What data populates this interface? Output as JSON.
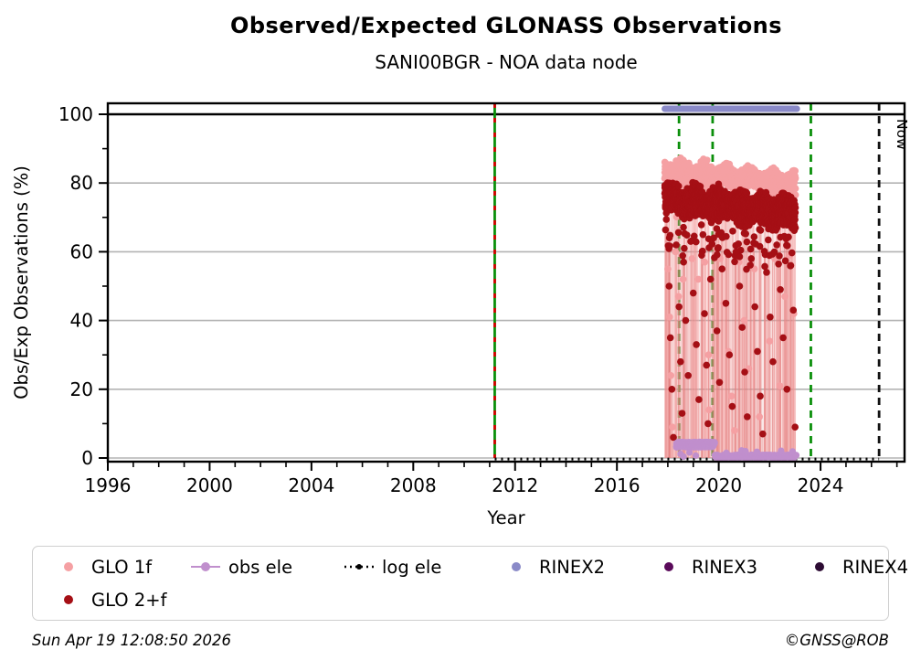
{
  "header": {
    "title": "Observed/Expected GLONASS Observations",
    "subtitle": "SANI00BGR - NOA data node"
  },
  "footer": {
    "timestamp": "Sun Apr 19 12:08:50 2026",
    "copyright": "©GNSS@ROB"
  },
  "legend": {
    "items": [
      {
        "label": "GLO 1f",
        "marker": "dot",
        "color": "#f5a0a3"
      },
      {
        "label": "obs ele",
        "marker": "line-dot",
        "color": "#c08fcd"
      },
      {
        "label": "log ele",
        "marker": "dotted-line",
        "color": "#000000"
      },
      {
        "label": "RINEX2",
        "marker": "dot",
        "color": "#8a8ac8"
      },
      {
        "label": "RINEX3",
        "marker": "dot",
        "color": "#5a0a5a"
      },
      {
        "label": "RINEX4",
        "marker": "dot",
        "color": "#2c0b33"
      },
      {
        "label": "GLO 2+f",
        "marker": "dot",
        "color": "#a50f15"
      }
    ]
  },
  "chart_data": {
    "type": "scatter",
    "title": "Observed/Expected GLONASS Observations",
    "subtitle": "SANI00BGR - NOA data node",
    "xlabel": "Year",
    "ylabel": "Obs/Exp Observations (%)",
    "xlim": [
      1996,
      2027.3
    ],
    "ylim": [
      -1.1,
      103.3
    ],
    "xticks": [
      1996,
      2000,
      2004,
      2008,
      2012,
      2016,
      2020,
      2024
    ],
    "xminor_from": 1997,
    "xminor_to": 2027,
    "yticks": [
      0,
      20,
      40,
      60,
      80,
      100
    ],
    "yminor": [
      10,
      30,
      50,
      70,
      90
    ],
    "grid_color": "#b3b3b3",
    "hundred_line": {
      "y": 100,
      "color": "#000000"
    },
    "now_label": "Now",
    "vlines": [
      {
        "x": 2011.2,
        "color": "#0a8f0a",
        "dash": false,
        "overlay_color": "#d40000",
        "label": ""
      },
      {
        "x": 2018.44,
        "color": "#0a8f0a",
        "dash": true,
        "label": ""
      },
      {
        "x": 2019.76,
        "color": "#0a8f0a",
        "dash": true,
        "label": ""
      },
      {
        "x": 2023.62,
        "color": "#0a8f0a",
        "dash": true,
        "label": ""
      },
      {
        "x": 2026.3,
        "color": "#111111",
        "dash": true,
        "label": "Now"
      }
    ],
    "series": [
      {
        "name": "GLO 1f",
        "color": "#f5a0a3",
        "stem_color": "rgba(246,163,165,0.45)",
        "band": {
          "x0": 2017.88,
          "x1": 2023.02,
          "step": 0.016,
          "top": [
            86.5,
            82.5
          ],
          "bottom": [
            80.0,
            77.0
          ],
          "r": 3.8,
          "seed": 1.7,
          "tail_prob": 0.09,
          "tail_drop": 8
        },
        "outliers": [
          [
            2018.0,
            55
          ],
          [
            2018.07,
            41
          ],
          [
            2018.12,
            24
          ],
          [
            2018.18,
            9
          ],
          [
            2018.3,
            60
          ],
          [
            2018.42,
            47
          ],
          [
            2018.6,
            52
          ],
          [
            2018.95,
            58
          ],
          [
            2019.2,
            52
          ],
          [
            2019.45,
            57
          ],
          [
            2019.6,
            30
          ],
          [
            2019.62,
            14
          ],
          [
            2019.9,
            61
          ],
          [
            2020.05,
            58
          ],
          [
            2020.2,
            45
          ],
          [
            2020.38,
            31
          ],
          [
            2020.5,
            18
          ],
          [
            2020.62,
            8
          ],
          [
            2020.8,
            57
          ],
          [
            2021.0,
            40
          ],
          [
            2021.18,
            26
          ],
          [
            2021.4,
            55
          ],
          [
            2021.6,
            12
          ],
          [
            2021.8,
            60
          ],
          [
            2022.0,
            34
          ],
          [
            2022.2,
            58
          ],
          [
            2022.4,
            21
          ],
          [
            2022.6,
            47
          ],
          [
            2022.8,
            59
          ],
          [
            2022.95,
            42
          ]
        ]
      },
      {
        "name": "GLO 2+f",
        "color": "#a50f15",
        "stem_color": "rgba(228,125,125,0.40)",
        "band": {
          "x0": 2017.88,
          "x1": 2023.02,
          "step": 0.015,
          "top": [
            79.5,
            75.5
          ],
          "bottom": [
            71.5,
            66.5
          ],
          "r": 3.8,
          "seed": 4.3,
          "tail_prob": 0.22,
          "tail_drop": 11
        },
        "outliers": [
          [
            2018.05,
            50
          ],
          [
            2018.1,
            35
          ],
          [
            2018.16,
            20
          ],
          [
            2018.22,
            6
          ],
          [
            2018.33,
            62
          ],
          [
            2018.44,
            44
          ],
          [
            2018.5,
            28
          ],
          [
            2018.56,
            13
          ],
          [
            2018.62,
            57
          ],
          [
            2018.7,
            40
          ],
          [
            2018.8,
            24
          ],
          [
            2018.9,
            63
          ],
          [
            2019.0,
            48
          ],
          [
            2019.12,
            33
          ],
          [
            2019.22,
            17
          ],
          [
            2019.33,
            59
          ],
          [
            2019.44,
            42
          ],
          [
            2019.52,
            27
          ],
          [
            2019.58,
            10
          ],
          [
            2019.63,
            4
          ],
          [
            2019.68,
            52
          ],
          [
            2019.8,
            64
          ],
          [
            2019.93,
            37
          ],
          [
            2020.03,
            22
          ],
          [
            2020.13,
            55
          ],
          [
            2020.28,
            45
          ],
          [
            2020.42,
            30
          ],
          [
            2020.53,
            15
          ],
          [
            2020.68,
            60
          ],
          [
            2020.82,
            50
          ],
          [
            2020.92,
            38
          ],
          [
            2021.02,
            25
          ],
          [
            2021.12,
            12
          ],
          [
            2021.28,
            58
          ],
          [
            2021.42,
            44
          ],
          [
            2021.52,
            31
          ],
          [
            2021.63,
            18
          ],
          [
            2021.73,
            7
          ],
          [
            2021.88,
            54
          ],
          [
            2022.02,
            41
          ],
          [
            2022.13,
            28
          ],
          [
            2022.28,
            62
          ],
          [
            2022.42,
            49
          ],
          [
            2022.53,
            35
          ],
          [
            2022.68,
            20
          ],
          [
            2022.83,
            56
          ],
          [
            2022.93,
            43
          ],
          [
            2023.0,
            9
          ]
        ]
      },
      {
        "name": "obs ele",
        "color": "#c08fcd",
        "segments": [
          {
            "x0": 2018.35,
            "x1": 2019.83,
            "y": 3.9,
            "amp": 1.3,
            "step": 0.008,
            "r": 4.2
          },
          {
            "x0": 2019.85,
            "x1": 2023.05,
            "y": 0.5,
            "amp": 0.9,
            "step": 0.013,
            "r": 3.6
          }
        ],
        "extra": [
          [
            2018.5,
            1.2
          ],
          [
            2018.62,
            0.4
          ],
          [
            2018.85,
            1.6
          ],
          [
            2019.1,
            0.7
          ],
          [
            2020.3,
            1.5
          ],
          [
            2020.9,
            2.2
          ],
          [
            2021.05,
            2.0
          ],
          [
            2021.5,
            1.8
          ],
          [
            2022.45,
            2.1
          ],
          [
            2022.9,
            1.9
          ]
        ]
      },
      {
        "name": "log ele",
        "color": "#000000",
        "line": {
          "x0": 2011.2,
          "x1": 2026.3,
          "y": -0.3,
          "style": "dotted"
        }
      },
      {
        "name": "RINEX2",
        "color": "#8a8ac8",
        "bar": {
          "x0": 2017.88,
          "x1": 2023.07,
          "y": 101.6,
          "width": 7
        }
      },
      {
        "name": "RINEX3",
        "color": "#5a0a5a"
      },
      {
        "name": "RINEX4",
        "color": "#2c0b33"
      }
    ]
  }
}
